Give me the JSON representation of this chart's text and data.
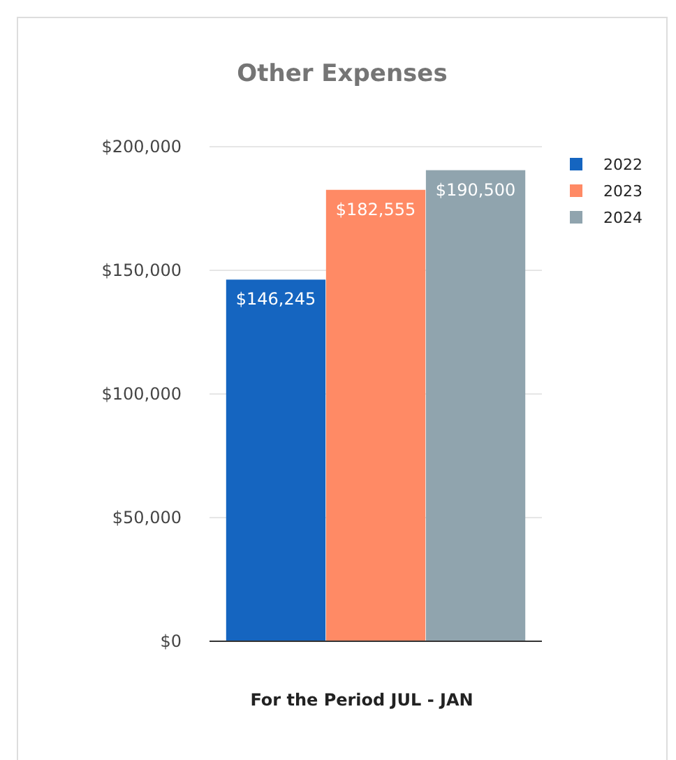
{
  "chart_data": {
    "type": "bar",
    "title": "Other Expenses",
    "xlabel": "For the Period JUL - JAN",
    "categories": [
      null
    ],
    "series": [
      {
        "name": "2022",
        "color": "#1565c0",
        "values": [
          146245
        ],
        "value_labels": [
          "$146,245"
        ]
      },
      {
        "name": "2023",
        "color": "#ff8a65",
        "values": [
          182555
        ],
        "value_labels": [
          "$182,555"
        ]
      },
      {
        "name": "2024",
        "color": "#90a4ae",
        "values": [
          190500
        ],
        "value_labels": [
          "$190,500"
        ]
      }
    ],
    "ylim": [
      0,
      200000
    ],
    "yticks": [
      {
        "value": 0,
        "label": "$0"
      },
      {
        "value": 50000,
        "label": "$50,000"
      },
      {
        "value": 100000,
        "label": "$100,000"
      },
      {
        "value": 150000,
        "label": "$150,000"
      },
      {
        "value": 200000,
        "label": "$200,000"
      }
    ],
    "grid": "y",
    "legend": "top right"
  }
}
